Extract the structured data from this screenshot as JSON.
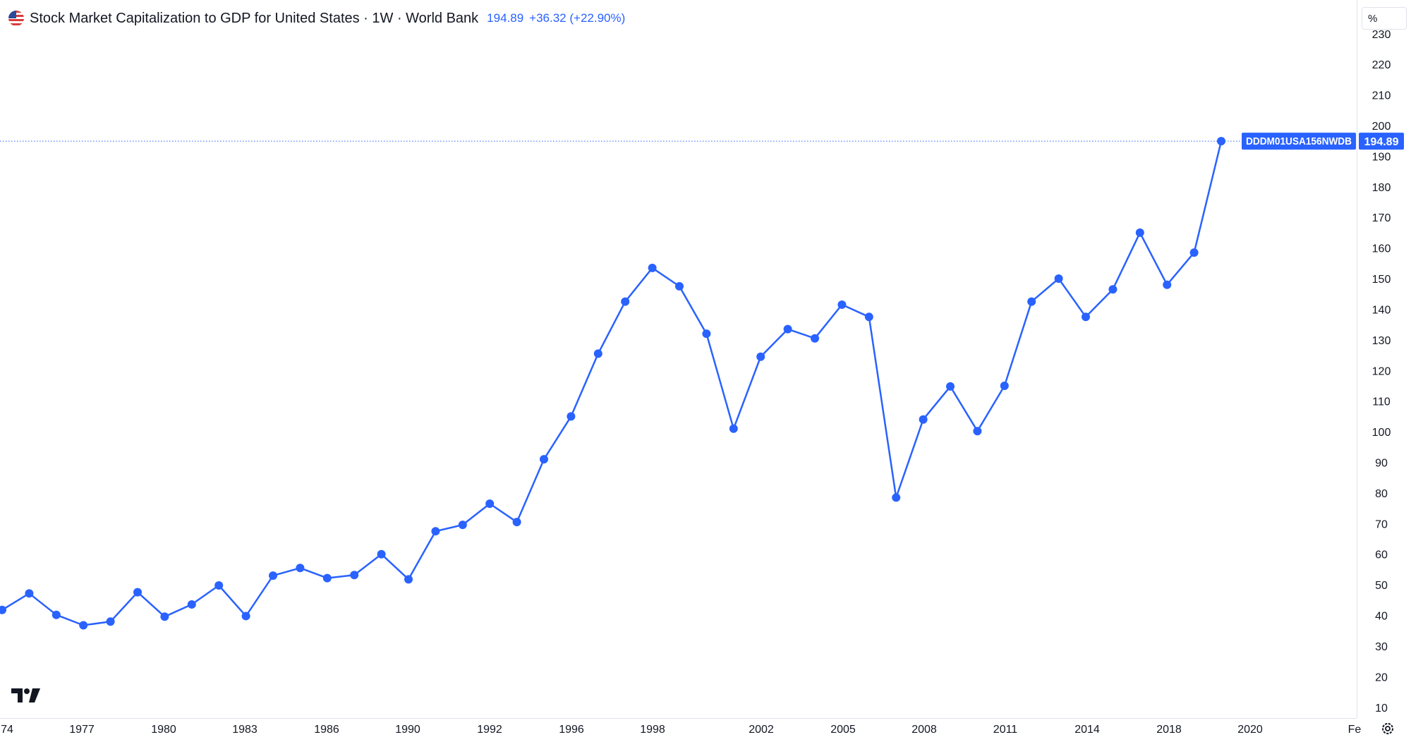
{
  "header": {
    "title": "Stock Market Capitalization to GDP for United States · 1W · World Bank",
    "last_value": "194.89",
    "change": "+36.32 (+22.90%)"
  },
  "price_scale": {
    "unit": "%"
  },
  "last_price_label": {
    "symbol": "DDDM01USA156NWDB",
    "value": "194.89"
  },
  "colors": {
    "series": "#2962ff",
    "text": "#131722",
    "axis_border": "#e0e3eb"
  },
  "icons": {
    "logo": "tradingview-logo-icon",
    "settings": "gear-icon",
    "flag": "us-flag-icon"
  },
  "chart_data": {
    "type": "line",
    "title": "Stock Market Capitalization to GDP for United States · 1W · World Bank",
    "xlabel": "",
    "ylabel": "%",
    "x": [
      1975,
      1976,
      1977,
      1978,
      1979,
      1980,
      1981,
      1982,
      1983,
      1984,
      1985,
      1986,
      1987,
      1988,
      1989,
      1990,
      1991,
      1992,
      1993,
      1994,
      1995,
      1996,
      1997,
      1998,
      1999,
      2000,
      2001,
      2002,
      2003,
      2004,
      2005,
      2006,
      2007,
      2008,
      2009,
      2010,
      2011,
      2012,
      2013,
      2014,
      2015,
      2016,
      2017,
      2018,
      2019,
      2020
    ],
    "series": [
      {
        "name": "DDDM01USA156NWDB",
        "values": [
          41.8,
          47.2,
          40.2,
          36.8,
          38.0,
          47.6,
          39.6,
          43.6,
          49.8,
          39.8,
          53.0,
          55.5,
          52.2,
          53.2,
          60.0,
          51.8,
          67.5,
          69.6,
          76.5,
          70.5,
          91.0,
          105.0,
          125.5,
          142.5,
          153.5,
          147.5,
          132.0,
          101.0,
          124.5,
          133.5,
          130.5,
          141.5,
          137.5,
          78.5,
          104.0,
          114.8,
          100.2,
          115.0,
          142.5,
          150.0,
          137.5,
          146.5,
          165.0,
          148.0,
          158.5,
          194.89
        ]
      }
    ],
    "x_tick_labels": [
      "74",
      "1977",
      "1980",
      "1983",
      "1986",
      "1990",
      "1992",
      "1996",
      "1998",
      "2002",
      "2005",
      "2008",
      "2011",
      "2014",
      "2018",
      "2020",
      "Fe"
    ],
    "y_ticks": [
      10,
      20,
      30,
      40,
      50,
      60,
      70,
      80,
      90,
      100,
      110,
      120,
      130,
      140,
      150,
      160,
      170,
      180,
      190,
      200,
      210,
      220,
      230
    ],
    "ylim": [
      6.5,
      241
    ],
    "grid": false,
    "legend": "top-left",
    "last_value_line": 194.89
  }
}
